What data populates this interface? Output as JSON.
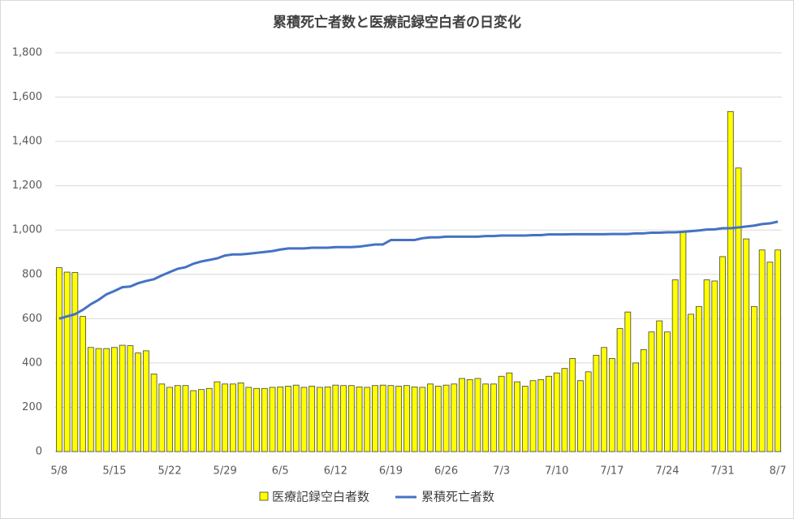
{
  "chart_data": {
    "type": "bar_line",
    "title": "累積死亡者数と医療記録空白者の日変化",
    "categories": [
      "5/8",
      null,
      null,
      null,
      null,
      null,
      null,
      "5/15",
      null,
      null,
      null,
      null,
      null,
      null,
      "5/22",
      null,
      null,
      null,
      null,
      null,
      null,
      "5/29",
      null,
      null,
      null,
      null,
      null,
      null,
      "6/5",
      null,
      null,
      null,
      null,
      null,
      null,
      "6/12",
      null,
      null,
      null,
      null,
      null,
      null,
      "6/19",
      null,
      null,
      null,
      null,
      null,
      null,
      "6/26",
      null,
      null,
      null,
      null,
      null,
      null,
      "7/3",
      null,
      null,
      null,
      null,
      null,
      null,
      "7/10",
      null,
      null,
      null,
      null,
      null,
      null,
      "7/17",
      null,
      null,
      null,
      null,
      null,
      null,
      "7/24",
      null,
      null,
      null,
      null,
      null,
      null,
      "7/31",
      null,
      null,
      null,
      null,
      null,
      null,
      "8/7"
    ],
    "series": [
      {
        "name": "医療記録空白者数",
        "kind": "bar",
        "color": "#ffff00",
        "values": [
          830,
          810,
          808,
          610,
          470,
          465,
          465,
          470,
          480,
          478,
          445,
          455,
          350,
          305,
          290,
          298,
          298,
          275,
          280,
          285,
          315,
          305,
          305,
          310,
          290,
          285,
          285,
          290,
          292,
          295,
          300,
          290,
          295,
          290,
          292,
          300,
          298,
          298,
          292,
          290,
          298,
          300,
          298,
          295,
          298,
          292,
          290,
          305,
          295,
          300,
          305,
          330,
          325,
          330,
          305,
          305,
          340,
          355,
          315,
          295,
          320,
          325,
          340,
          355,
          375,
          420,
          320,
          360,
          435,
          470,
          420,
          555,
          630,
          400,
          460,
          540,
          590,
          540,
          775,
          995,
          620,
          655,
          775,
          770,
          880,
          1535,
          1280,
          960,
          655,
          910,
          855,
          910
        ]
      },
      {
        "name": "累積死亡者数",
        "kind": "line",
        "color": "#4472c4",
        "values": [
          600,
          610,
          620,
          640,
          665,
          685,
          710,
          725,
          742,
          745,
          760,
          770,
          778,
          795,
          810,
          825,
          832,
          848,
          858,
          865,
          872,
          885,
          890,
          890,
          893,
          897,
          901,
          905,
          912,
          917,
          917,
          917,
          920,
          920,
          920,
          923,
          923,
          923,
          925,
          930,
          935,
          935,
          955,
          955,
          955,
          955,
          963,
          967,
          967,
          970,
          970,
          970,
          970,
          970,
          973,
          973,
          975,
          975,
          975,
          975,
          977,
          977,
          980,
          980,
          980,
          981,
          981,
          981,
          981,
          981,
          982,
          982,
          982,
          985,
          985,
          988,
          988,
          990,
          990,
          992,
          995,
          998,
          1002,
          1003,
          1008,
          1008,
          1012,
          1016,
          1020,
          1027,
          1030,
          1038
        ]
      }
    ],
    "ylim": [
      0,
      1800
    ],
    "yticks": [
      0,
      200,
      400,
      600,
      800,
      {
        "value": 1000,
        "label": "1,000"
      },
      {
        "value": 1200,
        "label": "1,200"
      },
      {
        "value": 1400,
        "label": "1,400"
      },
      {
        "value": 1600,
        "label": "1,600"
      },
      {
        "value": 1800,
        "label": "1,800"
      }
    ],
    "grid": true
  }
}
